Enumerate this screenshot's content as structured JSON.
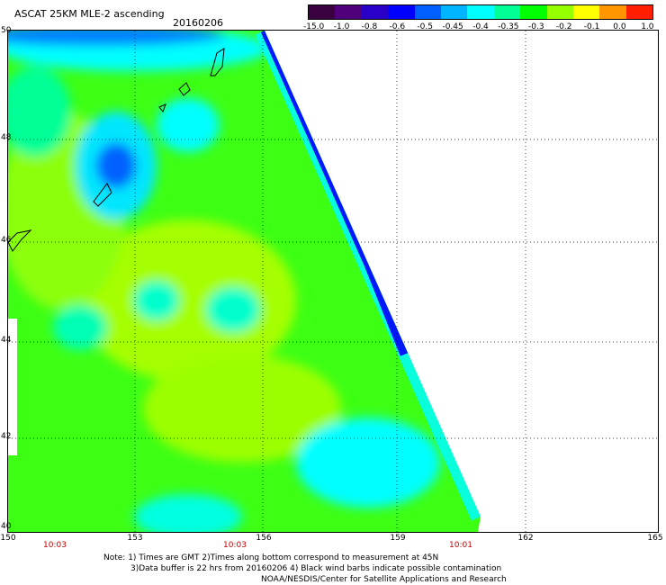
{
  "header": {
    "title": "ASCAT 25KM MLE-2 ascending",
    "date": "20160206"
  },
  "colorbar": {
    "labels": [
      "-15.0",
      "-1.0",
      "-0.8",
      "-0.6",
      "-0.5",
      "-0.45",
      "-0.4",
      "-0.35",
      "-0.3",
      "-0.2",
      "-0.1",
      "0.0",
      "1.0"
    ],
    "colors": [
      "#3a0040",
      "#50007a",
      "#2a00c8",
      "#0000ff",
      "#0060ff",
      "#00b4ff",
      "#00ffff",
      "#00ff96",
      "#00ff00",
      "#96ff00",
      "#ffff00",
      "#ff9600",
      "#ff1e00"
    ]
  },
  "map": {
    "lat_labels": [
      "50",
      "48",
      "46",
      "44",
      "42",
      "40"
    ],
    "lon_labels": [
      "150",
      "153",
      "156",
      "159",
      "162",
      "165"
    ],
    "time_labels": [
      "10:03",
      "10:03",
      "10:01"
    ]
  },
  "footer": {
    "note_line1": "Note: 1) Times are GMT 2)Times along bottom correspond to measurement at 45N",
    "note_line2": "3)Data buffer is 22 hrs from 20160206 4) Black wind barbs indicate possible contamination",
    "note_line3": "NOAA/NESDIS/Center for Satellite Applications and Research"
  }
}
